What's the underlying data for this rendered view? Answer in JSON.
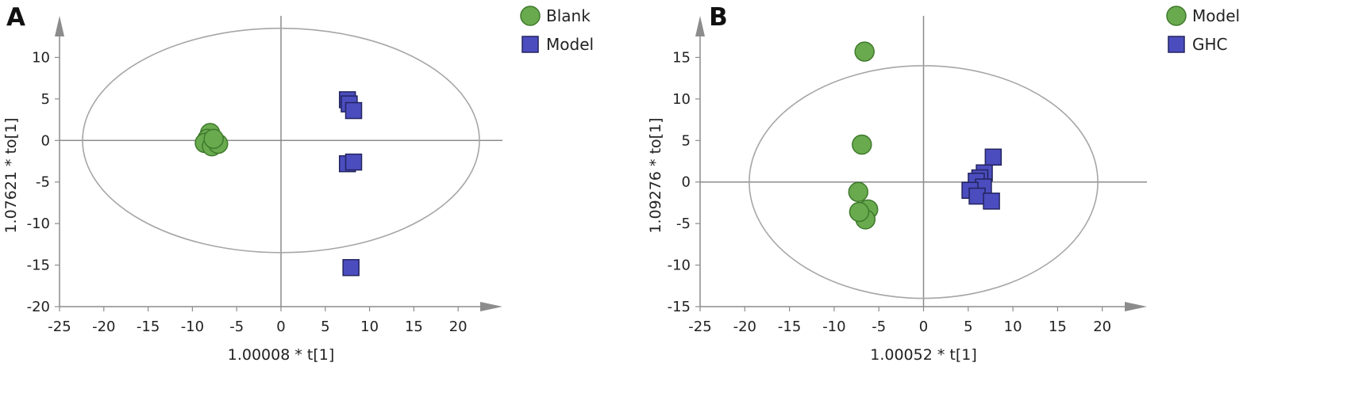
{
  "chart_data": [
    {
      "type": "scatter",
      "panel_label": "A",
      "xlabel": "1.00008 * t[1]",
      "ylabel": "1.07621 * to[1]",
      "xlim": [
        -25,
        25
      ],
      "ylim": [
        -20,
        15
      ],
      "xticks": [
        -25,
        -20,
        -15,
        -10,
        -5,
        0,
        5,
        10,
        15,
        20
      ],
      "yticks": [
        -20,
        -15,
        -10,
        -5,
        0,
        5,
        10
      ],
      "ellipse": {
        "rx": 22.4,
        "ry": 13.5
      },
      "legend_position": "top-right",
      "series": [
        {
          "name": "Blank",
          "marker": "circle",
          "color": "#6aaa4f",
          "points": [
            [
              -8,
              0.9
            ],
            [
              -8.3,
              0.2
            ],
            [
              -8.6,
              -0.3
            ],
            [
              -7.8,
              -0.7
            ],
            [
              -7.1,
              -0.4
            ],
            [
              -7.6,
              0.2
            ]
          ]
        },
        {
          "name": "Model",
          "marker": "square",
          "color": "#4b4dbf",
          "points": [
            [
              7.5,
              4.9
            ],
            [
              7.7,
              4.4
            ],
            [
              8.2,
              3.6
            ],
            [
              7.5,
              -2.8
            ],
            [
              8.2,
              -2.6
            ],
            [
              7.9,
              -15.3
            ]
          ]
        }
      ]
    },
    {
      "type": "scatter",
      "panel_label": "B",
      "xlabel": "1.00052 * t[1]",
      "ylabel": "1.09276 * to[1]",
      "xlim": [
        -25,
        25
      ],
      "ylim": [
        -15,
        20
      ],
      "xticks": [
        -25,
        -20,
        -15,
        -10,
        -5,
        0,
        5,
        10,
        15,
        20
      ],
      "yticks": [
        -15,
        -10,
        -5,
        0,
        5,
        10,
        15
      ],
      "ellipse": {
        "rx": 19.5,
        "ry": 14
      },
      "legend_position": "top-right",
      "series": [
        {
          "name": "Model",
          "marker": "circle",
          "color": "#6aaa4f",
          "points": [
            [
              -6.6,
              15.7
            ],
            [
              -6.9,
              4.5
            ],
            [
              -7.3,
              -1.2
            ],
            [
              -6.2,
              -3.3
            ],
            [
              -6.5,
              -4.5
            ],
            [
              -7.2,
              -3.6
            ]
          ]
        },
        {
          "name": "GHC",
          "marker": "square",
          "color": "#4b4dbf",
          "points": [
            [
              7.8,
              3
            ],
            [
              6.8,
              1.1
            ],
            [
              6.3,
              0.5
            ],
            [
              5.9,
              0.1
            ],
            [
              6.7,
              -0.6
            ],
            [
              5.2,
              -1
            ],
            [
              6,
              -1.7
            ],
            [
              7.6,
              -2.3
            ]
          ]
        }
      ]
    }
  ]
}
